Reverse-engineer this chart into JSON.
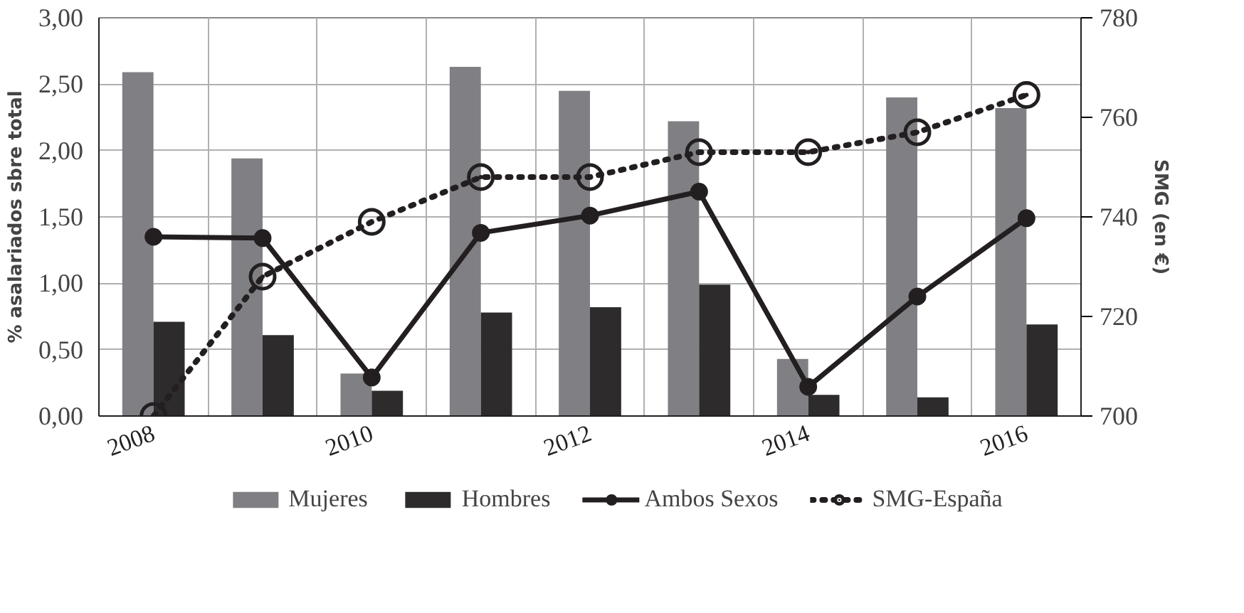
{
  "chart_data": {
    "type": "bar",
    "ylabel": "% asalariados sbre total",
    "y2label": "SMG (en €)",
    "categories": [
      "2008",
      null,
      "2010",
      null,
      "2012",
      null,
      "2014",
      null,
      "2016"
    ],
    "series": [
      {
        "name": "Mujeres",
        "color": "#808084",
        "values": [
          2.59,
          1.94,
          0.32,
          2.63,
          2.45,
          2.22,
          0.43,
          2.4,
          2.32
        ]
      },
      {
        "name": "Hombres",
        "color": "#2d2b2c",
        "values": [
          0.71,
          0.61,
          0.19,
          0.78,
          0.82,
          0.99,
          0.16,
          0.14,
          0.69
        ]
      },
      {
        "name": "Ambos Sexos",
        "type": "line",
        "color": "#231f20",
        "marker": "circle",
        "line_style": "solid",
        "values": [
          1.35,
          1.34,
          0.29,
          1.38,
          1.51,
          1.69,
          0.22,
          0.9,
          1.49
        ]
      },
      {
        "name": "SMG-España",
        "type": "line",
        "axis": "y2",
        "color": "#231f20",
        "marker": "circle",
        "line_style": "dotted",
        "values": [
          700,
          728,
          739,
          748,
          748,
          753,
          753,
          757,
          764.5
        ]
      }
    ],
    "ylim": [
      0,
      3
    ],
    "yticks": [
      {
        "value": 0,
        "label": "0,00"
      },
      {
        "value": 0.5,
        "label": "0,50"
      },
      {
        "value": 1,
        "label": "1,00"
      },
      {
        "value": 1.5,
        "label": "1,50"
      },
      {
        "value": 2,
        "label": "2,00"
      },
      {
        "value": 2.5,
        "label": "2,50"
      },
      {
        "value": 3,
        "label": "3,00"
      }
    ],
    "y2lim": [
      700,
      780
    ],
    "y2ticks": [
      700,
      720,
      740,
      760,
      780
    ],
    "grid": true,
    "legend": "bottom"
  }
}
